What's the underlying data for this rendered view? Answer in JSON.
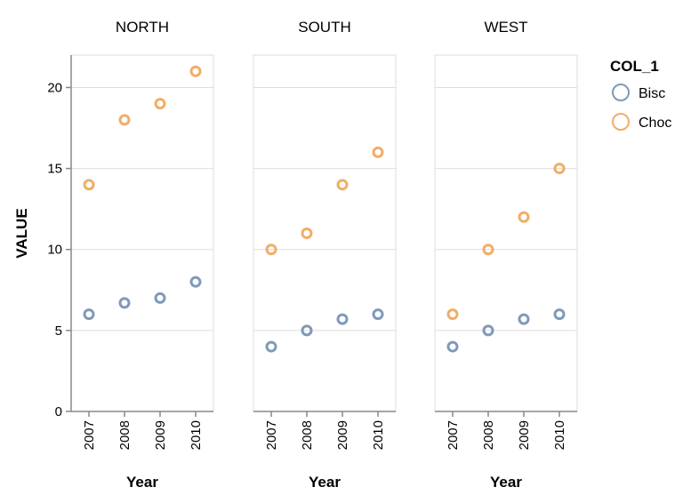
{
  "chart_data": {
    "type": "scatter",
    "facet_field": "",
    "facets": [
      "NORTH",
      "SOUTH",
      "WEST"
    ],
    "x": [
      "2007",
      "2008",
      "2009",
      "2010"
    ],
    "xlabel": "Year",
    "ylabel": "VALUE",
    "ylim": [
      0,
      22
    ],
    "yticks": [
      0,
      5,
      10,
      15,
      20
    ],
    "grid": true,
    "legend": {
      "title": "COL_1",
      "placement": "right"
    },
    "series": [
      {
        "name": "Bisc",
        "color": "#7f99bb",
        "values": {
          "NORTH": [
            6,
            6.7,
            7,
            8
          ],
          "SOUTH": [
            4,
            5,
            5.7,
            6
          ],
          "WEST": [
            4,
            5,
            5.7,
            6
          ]
        }
      },
      {
        "name": "Choc",
        "color": "#f2ad66",
        "values": {
          "NORTH": [
            14,
            18,
            19,
            21
          ],
          "SOUTH": [
            10,
            11,
            14,
            16
          ],
          "WEST": [
            6,
            10,
            12,
            15
          ]
        }
      }
    ]
  }
}
